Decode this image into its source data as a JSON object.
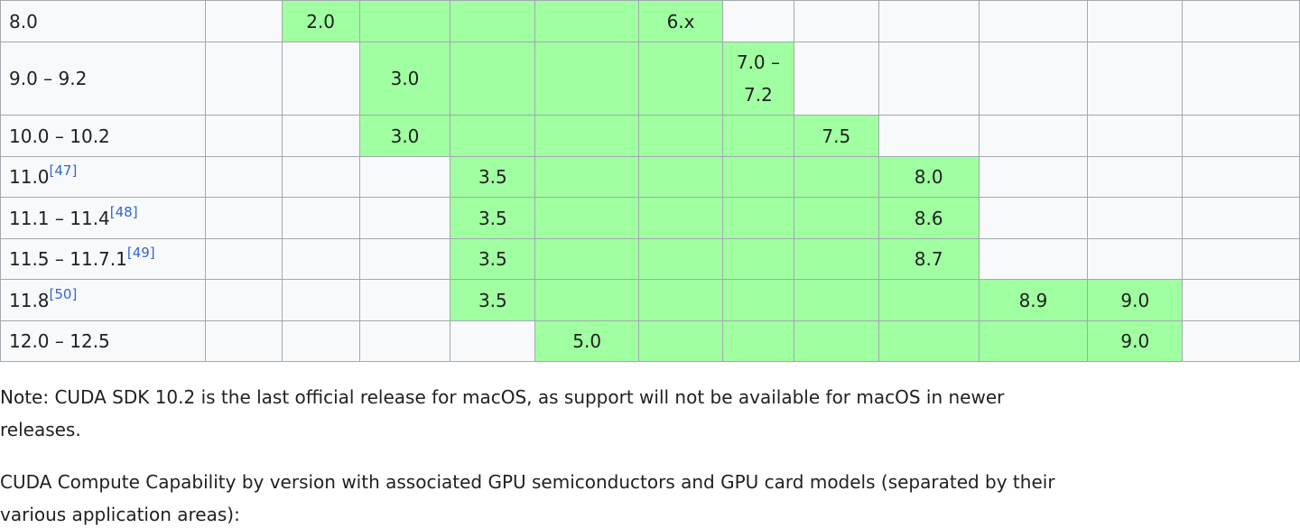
{
  "table": {
    "rows": [
      {
        "version": "8.0",
        "ref": "",
        "cells": [
          {
            "text": "",
            "green": false
          },
          {
            "text": "2.0",
            "green": true
          },
          {
            "text": "",
            "green": true
          },
          {
            "text": "",
            "green": true
          },
          {
            "text": "",
            "green": true
          },
          {
            "text": "6.x",
            "green": true
          },
          {
            "text": "",
            "green": false
          },
          {
            "text": "",
            "green": false
          },
          {
            "text": "",
            "green": false
          },
          {
            "text": "",
            "green": false
          },
          {
            "text": "",
            "green": false
          },
          {
            "text": "",
            "green": false
          }
        ]
      },
      {
        "version": "9.0 – 9.2",
        "ref": "",
        "cells": [
          {
            "text": "",
            "green": false
          },
          {
            "text": "",
            "green": false
          },
          {
            "text": "3.0",
            "green": true
          },
          {
            "text": "",
            "green": true
          },
          {
            "text": "",
            "green": true
          },
          {
            "text": "",
            "green": true
          },
          {
            "text": "7.0 – 7.2",
            "green": true,
            "wrap": true
          },
          {
            "text": "",
            "green": false
          },
          {
            "text": "",
            "green": false
          },
          {
            "text": "",
            "green": false
          },
          {
            "text": "",
            "green": false
          },
          {
            "text": "",
            "green": false
          }
        ]
      },
      {
        "version": "10.0 – 10.2",
        "ref": "",
        "cells": [
          {
            "text": "",
            "green": false
          },
          {
            "text": "",
            "green": false
          },
          {
            "text": "3.0",
            "green": true
          },
          {
            "text": "",
            "green": true
          },
          {
            "text": "",
            "green": true
          },
          {
            "text": "",
            "green": true
          },
          {
            "text": "",
            "green": true
          },
          {
            "text": "7.5",
            "green": true
          },
          {
            "text": "",
            "green": false
          },
          {
            "text": "",
            "green": false
          },
          {
            "text": "",
            "green": false
          },
          {
            "text": "",
            "green": false
          }
        ]
      },
      {
        "version": "11.0",
        "ref": "[47]",
        "cells": [
          {
            "text": "",
            "green": false
          },
          {
            "text": "",
            "green": false
          },
          {
            "text": "",
            "green": false
          },
          {
            "text": "3.5",
            "green": true
          },
          {
            "text": "",
            "green": true
          },
          {
            "text": "",
            "green": true
          },
          {
            "text": "",
            "green": true
          },
          {
            "text": "",
            "green": true
          },
          {
            "text": "8.0",
            "green": true
          },
          {
            "text": "",
            "green": false
          },
          {
            "text": "",
            "green": false
          },
          {
            "text": "",
            "green": false
          }
        ]
      },
      {
        "version": "11.1 – 11.4",
        "ref": "[48]",
        "cells": [
          {
            "text": "",
            "green": false
          },
          {
            "text": "",
            "green": false
          },
          {
            "text": "",
            "green": false
          },
          {
            "text": "3.5",
            "green": true
          },
          {
            "text": "",
            "green": true
          },
          {
            "text": "",
            "green": true
          },
          {
            "text": "",
            "green": true
          },
          {
            "text": "",
            "green": true
          },
          {
            "text": "8.6",
            "green": true
          },
          {
            "text": "",
            "green": false
          },
          {
            "text": "",
            "green": false
          },
          {
            "text": "",
            "green": false
          }
        ]
      },
      {
        "version": "11.5 – 11.7.1",
        "ref": "[49]",
        "cells": [
          {
            "text": "",
            "green": false
          },
          {
            "text": "",
            "green": false
          },
          {
            "text": "",
            "green": false
          },
          {
            "text": "3.5",
            "green": true
          },
          {
            "text": "",
            "green": true
          },
          {
            "text": "",
            "green": true
          },
          {
            "text": "",
            "green": true
          },
          {
            "text": "",
            "green": true
          },
          {
            "text": "8.7",
            "green": true
          },
          {
            "text": "",
            "green": false
          },
          {
            "text": "",
            "green": false
          },
          {
            "text": "",
            "green": false
          }
        ]
      },
      {
        "version": "11.8",
        "ref": "[50]",
        "cells": [
          {
            "text": "",
            "green": false
          },
          {
            "text": "",
            "green": false
          },
          {
            "text": "",
            "green": false
          },
          {
            "text": "3.5",
            "green": true
          },
          {
            "text": "",
            "green": true
          },
          {
            "text": "",
            "green": true
          },
          {
            "text": "",
            "green": true
          },
          {
            "text": "",
            "green": true
          },
          {
            "text": "",
            "green": true
          },
          {
            "text": "8.9",
            "green": true
          },
          {
            "text": "9.0",
            "green": true
          },
          {
            "text": "",
            "green": false
          }
        ]
      },
      {
        "version": "12.0 – 12.5",
        "ref": "",
        "cells": [
          {
            "text": "",
            "green": false
          },
          {
            "text": "",
            "green": false
          },
          {
            "text": "",
            "green": false
          },
          {
            "text": "",
            "green": false
          },
          {
            "text": "5.0",
            "green": true
          },
          {
            "text": "",
            "green": true
          },
          {
            "text": "",
            "green": true
          },
          {
            "text": "",
            "green": true
          },
          {
            "text": "",
            "green": true
          },
          {
            "text": "",
            "green": true
          },
          {
            "text": "9.0",
            "green": true
          },
          {
            "text": "",
            "green": false
          }
        ]
      }
    ]
  },
  "note": "Note: CUDA SDK 10.2 is the last official release for macOS, as support will not be available for macOS in newer releases.",
  "caption": "CUDA Compute Capability by version with associated GPU semiconductors and GPU card models (separated by their various application areas):",
  "colors": {
    "supported_cell": "#a0ffa0",
    "empty_cell": "#f8f9fa",
    "border": "#a2a9b1",
    "reference_link": "#3366cc"
  }
}
